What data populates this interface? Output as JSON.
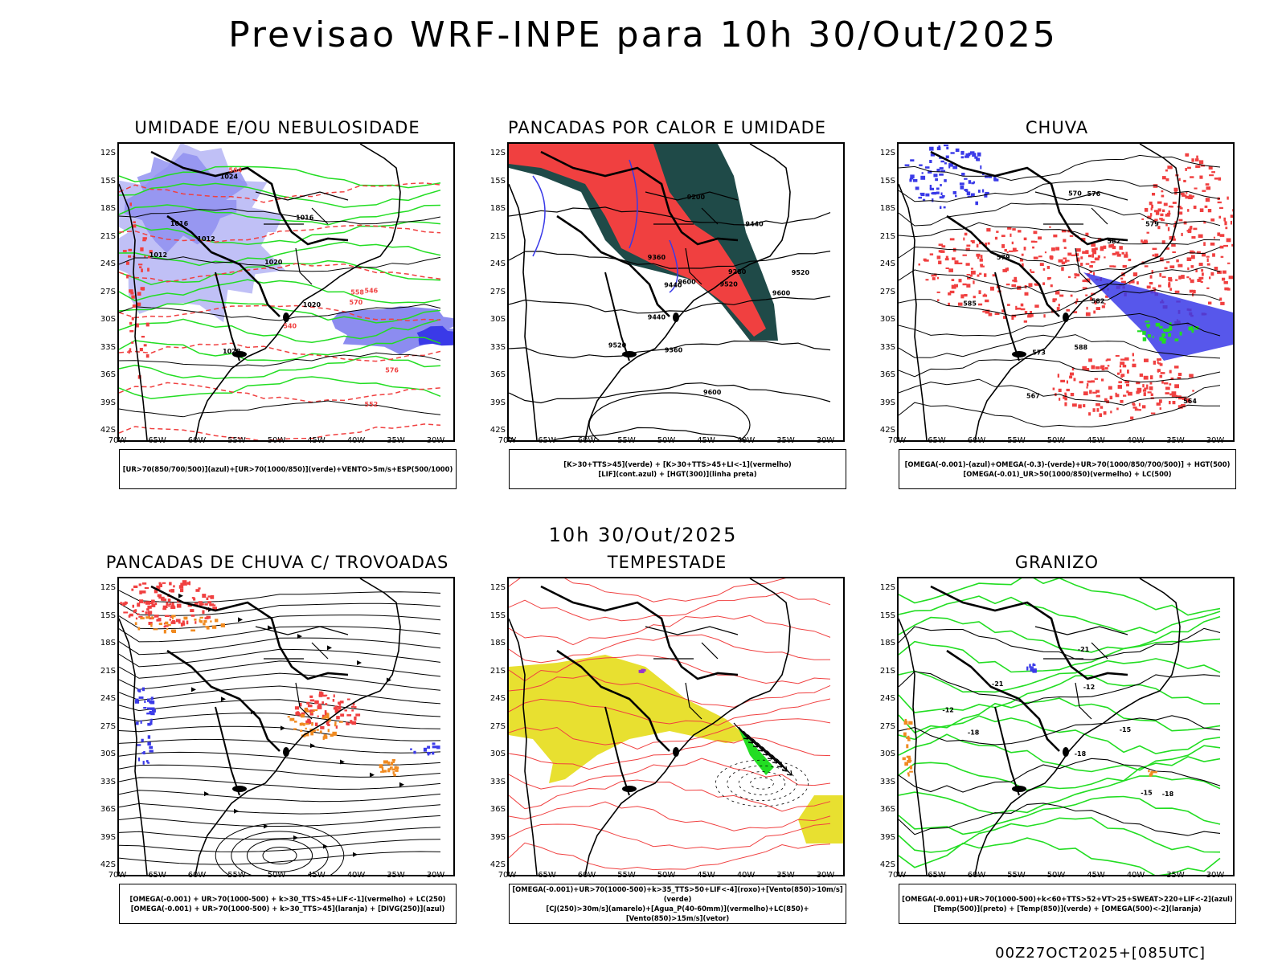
{
  "page": {
    "title": "Previsao WRF-INPE  para 10h 30/Out/2025",
    "mid_date": "10h 30/Out/2025",
    "run_stamp": "00Z27OCT2025+[085UTC]"
  },
  "axes": {
    "lat_labels": [
      "12S",
      "15S",
      "18S",
      "21S",
      "24S",
      "27S",
      "30S",
      "33S",
      "36S",
      "39S",
      "42S"
    ],
    "lon_labels": [
      "70W",
      "65W",
      "60W",
      "55W",
      "50W",
      "45W",
      "40W",
      "35W",
      "30W"
    ]
  },
  "colors": {
    "blue_light": "#b9b9f5",
    "blue_mid": "#8c8cf0",
    "blue_strong": "#3a3ae8",
    "green": "#22dd22",
    "red": "#f04040",
    "dark_teal": "#1f4a48",
    "yellow": "#e8e030",
    "orange": "#f08a20",
    "purple": "#9933cc"
  },
  "panels": [
    {
      "id": "umidade",
      "title": "UMIDADE E/OU NEBULOSIDADE",
      "legend": [
        "[UR>70(850/700/500)](azul)+[UR>70(1000/850)](verde)+VENTO>5m/s+ESP(500/1000)"
      ],
      "contour_labels": [
        "1012",
        "1016",
        "1020",
        "1024",
        "1028",
        "1016",
        "1012",
        "1020",
        "576",
        "570",
        "564",
        "558",
        "552",
        "546",
        "540"
      ]
    },
    {
      "id": "pancadas",
      "title": "PANCADAS POR CALOR E UMIDADE",
      "legend": [
        "[K>30+TTS>45](verde) + [K>30+TTS>45+LI<-1](vermelho)",
        "[LIF](cont.azul) + [HGT(300)](linha preta)"
      ],
      "contour_labels": [
        "9600",
        "9600",
        "9600",
        "9520",
        "9520",
        "9440",
        "9440",
        "9360",
        "9360",
        "9280",
        "9200",
        "9520",
        "9440"
      ]
    },
    {
      "id": "chuva",
      "title": "CHUVA",
      "legend": [
        "[OMEGA(-0.001)-(azul)+OMEGA(-0.3)-(verde)+UR>70(1000/850/700/500)] + HGT(500)",
        "[OMEGA(-0.01)_UR>50(1000/850)(vermelho) + LC(500)"
      ],
      "contour_labels": [
        "588",
        "585",
        "582",
        "579",
        "576",
        "573",
        "570",
        "567",
        "564",
        "582",
        "579"
      ]
    },
    {
      "id": "trovoadas",
      "title": "PANCADAS DE CHUVA C/ TROVOADAS",
      "legend": [
        "[OMEGA(-0.001) + UR>70(1000-500) + k>30_TTS>45+LIF<-1](vermelho) + LC(250)",
        "[OMEGA(-0.001) + UR>70(1000-500) + k>30_TTS>45](laranja) + [DIVG(250)](azul)"
      ],
      "contour_labels": []
    },
    {
      "id": "tempestade",
      "title": "TEMPESTADE",
      "legend": [
        "[OMEGA(-0.001)+UR>70(1000-500)+k>35_TTS>50+LIF<-4](roxo)+[Vento(850)>10m/s](verde)",
        "[CJ(250)>30m/s](amarelo)+[Agua_P(40-60mm)](vermelho)+LC(850)+[Vento(850)>15m/s](vetor)"
      ],
      "contour_labels": []
    },
    {
      "id": "granizo",
      "title": "GRANIZO",
      "legend": [
        "[OMEGA(-0.001)+UR>70(1000-500)+k<60+TTS>52+VT>25+SWEAT>220+LIF<-2](azul)",
        "[Temp(500)](preto) + [Temp(850)](verde) + [OMEGA(500)<-2](laranja)"
      ],
      "contour_labels": [
        "-12",
        "-15",
        "-18",
        "-21",
        "-21",
        "-18",
        "-15",
        "-12",
        "-18"
      ]
    }
  ]
}
